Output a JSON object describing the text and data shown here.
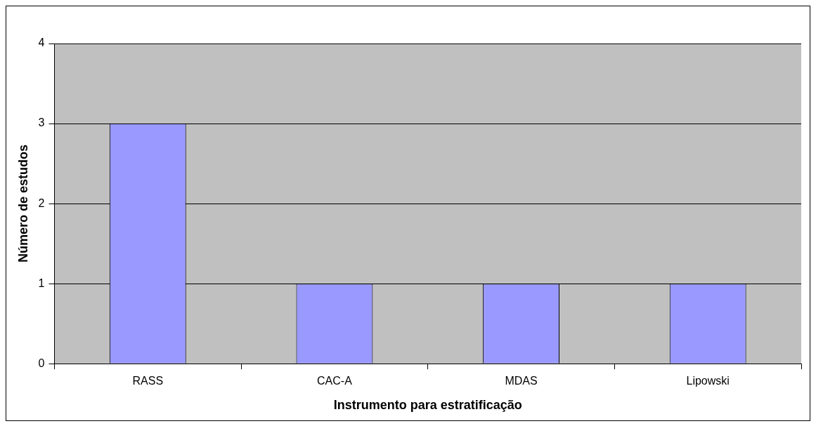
{
  "chart_data": {
    "type": "bar",
    "xlabel": "Instrumento para estratificação",
    "ylabel": "Número de estudos",
    "categories": [
      "RASS",
      "CAC-A",
      "MDAS",
      "Lipowski"
    ],
    "values": [
      3,
      1,
      1,
      1
    ],
    "color": "#9999ff",
    "ylim": [
      0,
      4
    ],
    "yticks": [
      0,
      1,
      2,
      3,
      4
    ],
    "grid": "y",
    "legend": false
  }
}
